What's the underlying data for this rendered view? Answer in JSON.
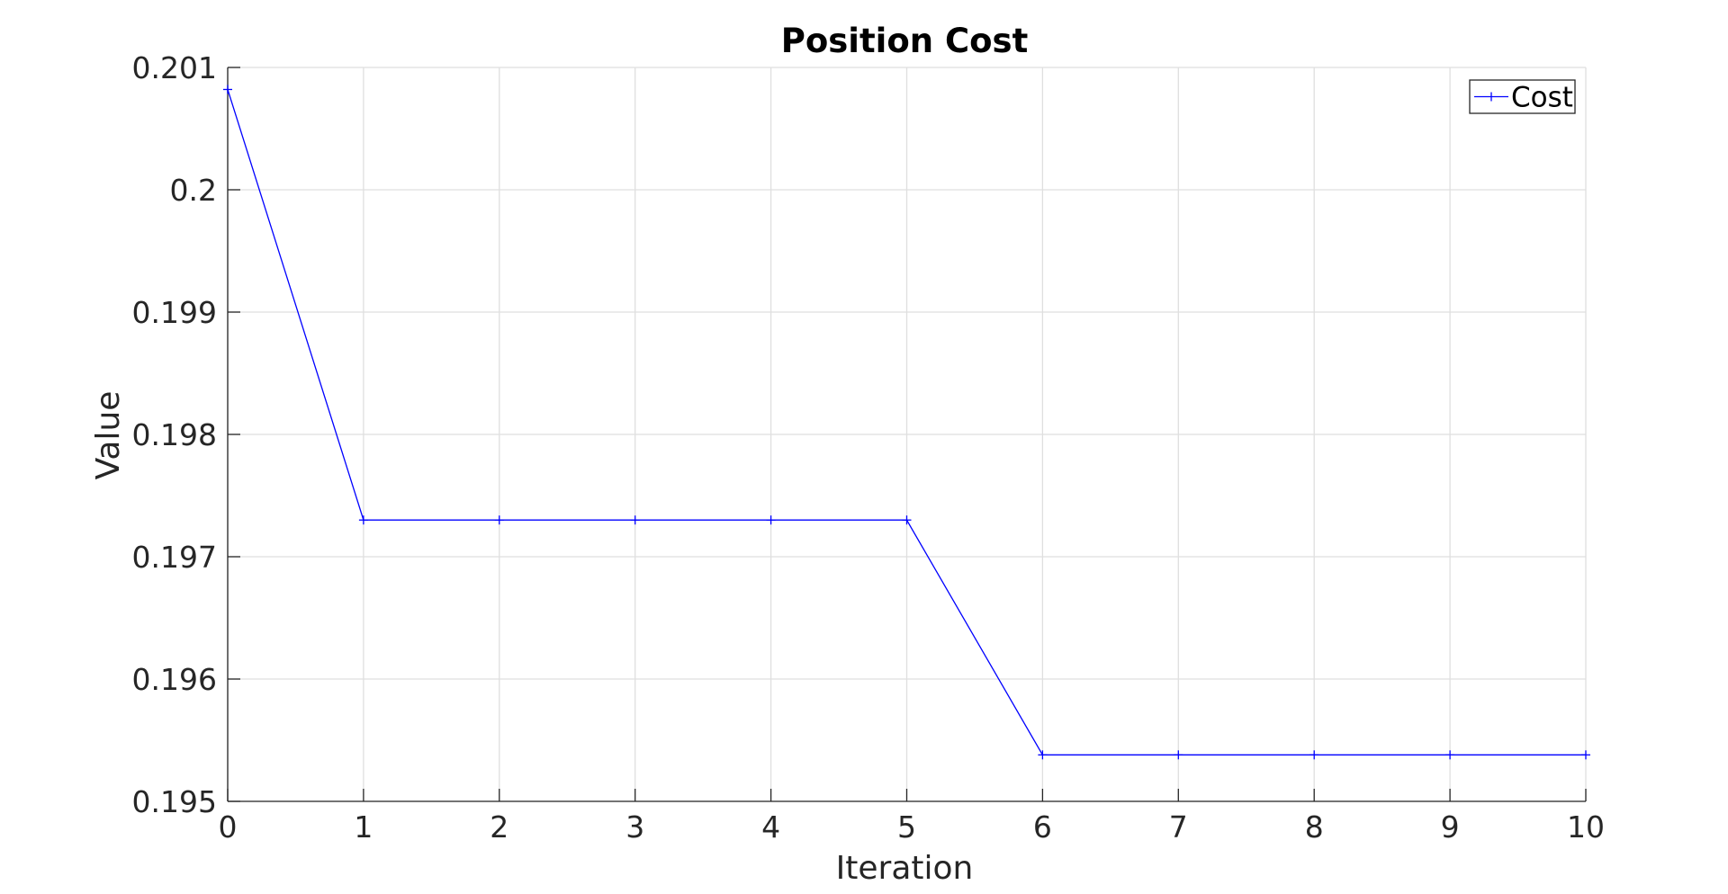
{
  "chart_data": {
    "type": "line",
    "title": "Position Cost",
    "xlabel": "Iteration",
    "ylabel": "Value",
    "x": [
      0,
      1,
      2,
      3,
      4,
      5,
      6,
      7,
      8,
      9,
      10
    ],
    "series": [
      {
        "name": "Cost",
        "color": "#0000ff",
        "marker": "plus",
        "values": [
          0.20082,
          0.1973,
          0.1973,
          0.1973,
          0.1973,
          0.1973,
          0.19538,
          0.19538,
          0.19538,
          0.19538,
          0.19538
        ]
      }
    ],
    "xlim": [
      0,
      10
    ],
    "ylim": [
      0.195,
      0.201
    ],
    "xticks": [
      0,
      1,
      2,
      3,
      4,
      5,
      6,
      7,
      8,
      9,
      10
    ],
    "xtick_labels": [
      "0",
      "1",
      "2",
      "3",
      "4",
      "5",
      "6",
      "7",
      "8",
      "9",
      "10"
    ],
    "yticks": [
      0.195,
      0.196,
      0.197,
      0.198,
      0.199,
      0.2,
      0.201
    ],
    "ytick_labels": [
      "0.195",
      "0.196",
      "0.197",
      "0.198",
      "0.199",
      "0.2",
      "0.201"
    ],
    "grid": true,
    "legend_position": "top-right"
  }
}
